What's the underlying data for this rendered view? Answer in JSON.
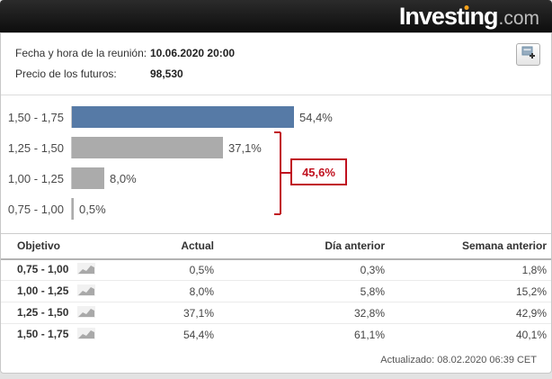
{
  "logo": {
    "text_main": "Investing",
    "text_suffix": ".com"
  },
  "header": {
    "meeting_label": "Fecha y hora de la reunión:",
    "meeting_value": "10.06.2020 20:00",
    "futures_label": "Precio de los futuros:",
    "futures_value": "98,530"
  },
  "chart_data": {
    "type": "bar",
    "orientation": "horizontal",
    "title": "",
    "categories": [
      "1,50 - 1,75",
      "1,25 - 1,50",
      "1,00 - 1,25",
      "0,75 - 1,00"
    ],
    "values": [
      54.4,
      37.1,
      8.0,
      0.5
    ],
    "value_labels": [
      "54,4%",
      "37,1%",
      "8,0%",
      "0,5%"
    ],
    "bar_colors": [
      "#567aa6",
      "#ababab",
      "#ababab",
      "#ababab"
    ],
    "xlim": [
      0,
      60
    ],
    "grid": false,
    "annotation": {
      "label": "45,6%",
      "color": "#c0111f",
      "spans_categories": [
        "1,25 - 1,50",
        "1,00 - 1,25",
        "0,75 - 1,00"
      ]
    }
  },
  "table": {
    "columns": [
      "Objetivo",
      "Actual",
      "Día anterior",
      "Semana anterior"
    ],
    "rows": [
      {
        "objetivo": "0,75 - 1,00",
        "actual": "0,5%",
        "dia_anterior": "0,3%",
        "semana_anterior": "1,8%"
      },
      {
        "objetivo": "1,00 - 1,25",
        "actual": "8,0%",
        "dia_anterior": "5,8%",
        "semana_anterior": "15,2%"
      },
      {
        "objetivo": "1,25 - 1,50",
        "actual": "37,1%",
        "dia_anterior": "32,8%",
        "semana_anterior": "42,9%"
      },
      {
        "objetivo": "1,50 - 1,75",
        "actual": "54,4%",
        "dia_anterior": "61,1%",
        "semana_anterior": "40,1%"
      }
    ]
  },
  "footer": {
    "updated_label": "Actualizado:",
    "updated_value": "08.02.2020 06:39 CET"
  },
  "icons": {
    "add_widget": "add-to-website-icon",
    "sparkline": "mini-chart-icon",
    "logo_dot": "orange-dot"
  },
  "colors": {
    "bar_blue": "#567aa6",
    "bar_gray": "#ababab",
    "accent_red": "#c0111f",
    "logo_dot_orange": "#f7a21b",
    "topbar_black": "#141414"
  }
}
